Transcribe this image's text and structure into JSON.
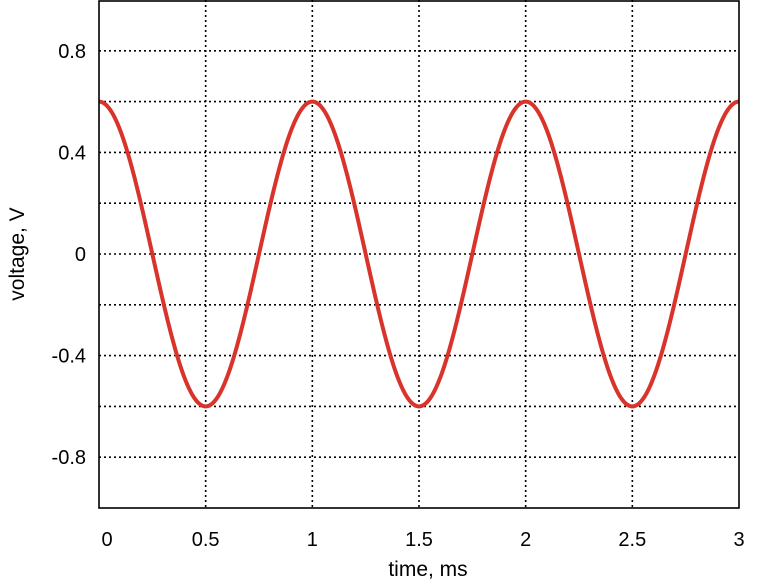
{
  "chart_data": {
    "type": "line",
    "xlabel": "time, ms",
    "ylabel": "voltage, V",
    "xlim": [
      0,
      3
    ],
    "ylim": [
      -1,
      1
    ],
    "x_ticks": [
      0,
      0.5,
      1,
      1.5,
      2,
      2.5,
      3
    ],
    "x_tick_labels": [
      "0",
      "0.5",
      "1",
      "1.5",
      "2",
      "2.5",
      "3"
    ],
    "y_ticks": [
      0.8,
      0.4,
      0,
      -0.4,
      -0.8
    ],
    "y_tick_labels": [
      "0.8",
      "0.4",
      "0",
      "-0.4",
      "-0.8"
    ],
    "grid_x": [
      0.5,
      1,
      1.5,
      2,
      2.5
    ],
    "grid_y": [
      0.8,
      0.6,
      0.4,
      0.2,
      0,
      -0.2,
      -0.4,
      -0.6,
      -0.8
    ],
    "grid": true,
    "series": [
      {
        "color": "#d9342b",
        "function": "0.6*cos(2*pi*t), t in ms",
        "amplitude": 0.6,
        "frequency_per_ms": 1,
        "x": [
          0,
          0.25,
          0.5,
          0.75,
          1,
          1.25,
          1.5,
          1.75,
          2,
          2.25,
          2.5,
          2.75,
          3
        ],
        "values": [
          0.6,
          0,
          -0.6,
          0,
          0.6,
          0,
          -0.6,
          0,
          0.6,
          0,
          -0.6,
          0,
          0.6
        ]
      }
    ]
  }
}
